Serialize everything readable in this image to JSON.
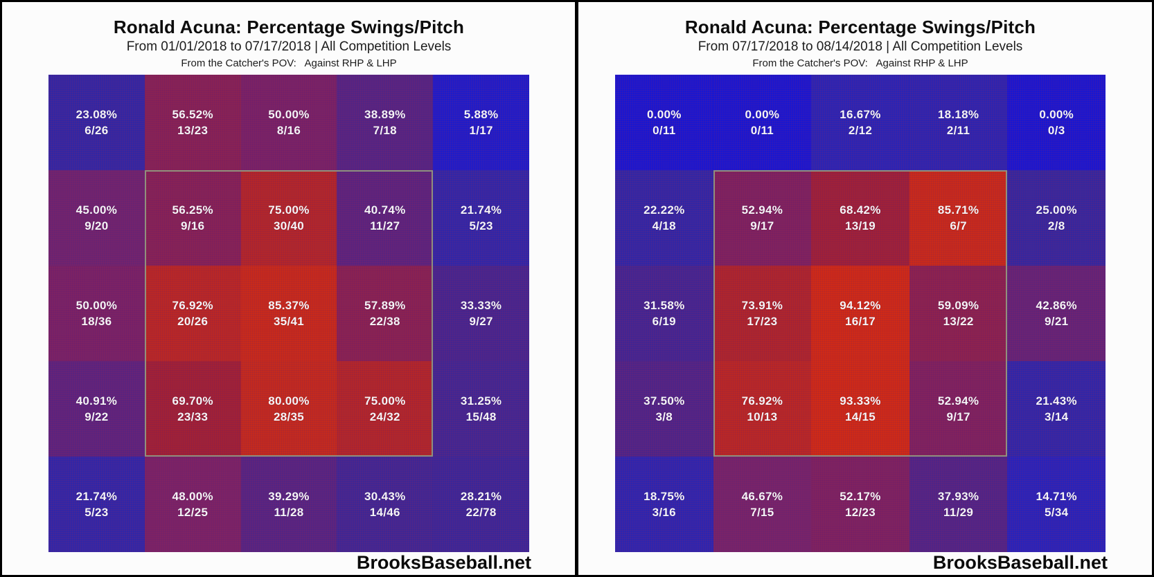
{
  "site_label": "BrooksBaseball.net",
  "panels": [
    {
      "title": "Ronald Acuna: Percentage Swings/Pitch",
      "subtitle": "From 01/01/2018 to 07/17/2018 | All Competition Levels",
      "pov_line": "From the Catcher's POV:   Against RHP & LHP",
      "footer": "BrooksBaseball.net"
    },
    {
      "title": "Ronald Acuna: Percentage Swings/Pitch",
      "subtitle": "From 07/17/2018 to 08/14/2018 | All Competition Levels",
      "pov_line": "From the Catcher's POV:   Against RHP & LHP",
      "footer": "BrooksBaseball.net"
    }
  ],
  "color_scale": {
    "low_color": "#1717d1",
    "high_color": "#d62a12",
    "strike_zone_outline": "#90907d",
    "stops": [
      {
        "t": 0,
        "color": "#1717d1"
      },
      {
        "t": 0.12,
        "color": "#2222c2"
      },
      {
        "t": 0.25,
        "color": "#33279f"
      },
      {
        "t": 0.375,
        "color": "#4b2489"
      },
      {
        "t": 0.5,
        "color": "#7d2263"
      },
      {
        "t": 0.7,
        "color": "#a42133"
      },
      {
        "t": 0.8,
        "color": "#c62a1c"
      },
      {
        "t": 1,
        "color": "#d62a12"
      }
    ]
  },
  "chart_data": [
    {
      "type": "heatmap",
      "title": "Ronald Acuna: Percentage Swings/Pitch",
      "subtitle": "From 01/01/2018 to 07/17/2018 | All Competition Levels",
      "pov": "From the Catcher's POV: Against RHP & LHP",
      "value_unit": "percent swings per pitch (swings/pitches)",
      "rows": 5,
      "cols": 5,
      "strike_zone": "inner 3x3 cells outlined",
      "cells": [
        [
          {
            "value": 23.08,
            "pct": "23.08%",
            "frac": "6/26"
          },
          {
            "value": 56.52,
            "pct": "56.52%",
            "frac": "13/23"
          },
          {
            "value": 50.0,
            "pct": "50.00%",
            "frac": "8/16"
          },
          {
            "value": 38.89,
            "pct": "38.89%",
            "frac": "7/18"
          },
          {
            "value": 5.88,
            "pct": "5.88%",
            "frac": "1/17"
          }
        ],
        [
          {
            "value": 45.0,
            "pct": "45.00%",
            "frac": "9/20"
          },
          {
            "value": 56.25,
            "pct": "56.25%",
            "frac": "9/16"
          },
          {
            "value": 75.0,
            "pct": "75.00%",
            "frac": "30/40"
          },
          {
            "value": 40.74,
            "pct": "40.74%",
            "frac": "11/27"
          },
          {
            "value": 21.74,
            "pct": "21.74%",
            "frac": "5/23"
          }
        ],
        [
          {
            "value": 50.0,
            "pct": "50.00%",
            "frac": "18/36"
          },
          {
            "value": 76.92,
            "pct": "76.92%",
            "frac": "20/26"
          },
          {
            "value": 85.37,
            "pct": "85.37%",
            "frac": "35/41"
          },
          {
            "value": 57.89,
            "pct": "57.89%",
            "frac": "22/38"
          },
          {
            "value": 33.33,
            "pct": "33.33%",
            "frac": "9/27"
          }
        ],
        [
          {
            "value": 40.91,
            "pct": "40.91%",
            "frac": "9/22"
          },
          {
            "value": 69.7,
            "pct": "69.70%",
            "frac": "23/33"
          },
          {
            "value": 80.0,
            "pct": "80.00%",
            "frac": "28/35"
          },
          {
            "value": 75.0,
            "pct": "75.00%",
            "frac": "24/32"
          },
          {
            "value": 31.25,
            "pct": "31.25%",
            "frac": "15/48"
          }
        ],
        [
          {
            "value": 21.74,
            "pct": "21.74%",
            "frac": "5/23"
          },
          {
            "value": 48.0,
            "pct": "48.00%",
            "frac": "12/25"
          },
          {
            "value": 39.29,
            "pct": "39.29%",
            "frac": "11/28"
          },
          {
            "value": 30.43,
            "pct": "30.43%",
            "frac": "14/46"
          },
          {
            "value": 28.21,
            "pct": "28.21%",
            "frac": "22/78"
          }
        ]
      ]
    },
    {
      "type": "heatmap",
      "title": "Ronald Acuna: Percentage Swings/Pitch",
      "subtitle": "From 07/17/2018 to 08/14/2018 | All Competition Levels",
      "pov": "From the Catcher's POV: Against RHP & LHP",
      "value_unit": "percent swings per pitch (swings/pitches)",
      "rows": 5,
      "cols": 5,
      "strike_zone": "inner 3x3 cells outlined",
      "cells": [
        [
          {
            "value": 0.0,
            "pct": "0.00%",
            "frac": "0/11"
          },
          {
            "value": 0.0,
            "pct": "0.00%",
            "frac": "0/11"
          },
          {
            "value": 16.67,
            "pct": "16.67%",
            "frac": "2/12"
          },
          {
            "value": 18.18,
            "pct": "18.18%",
            "frac": "2/11"
          },
          {
            "value": 0.0,
            "pct": "0.00%",
            "frac": "0/3"
          }
        ],
        [
          {
            "value": 22.22,
            "pct": "22.22%",
            "frac": "4/18"
          },
          {
            "value": 52.94,
            "pct": "52.94%",
            "frac": "9/17"
          },
          {
            "value": 68.42,
            "pct": "68.42%",
            "frac": "13/19"
          },
          {
            "value": 85.71,
            "pct": "85.71%",
            "frac": "6/7"
          },
          {
            "value": 25.0,
            "pct": "25.00%",
            "frac": "2/8"
          }
        ],
        [
          {
            "value": 31.58,
            "pct": "31.58%",
            "frac": "6/19"
          },
          {
            "value": 73.91,
            "pct": "73.91%",
            "frac": "17/23"
          },
          {
            "value": 94.12,
            "pct": "94.12%",
            "frac": "16/17"
          },
          {
            "value": 59.09,
            "pct": "59.09%",
            "frac": "13/22"
          },
          {
            "value": 42.86,
            "pct": "42.86%",
            "frac": "9/21"
          }
        ],
        [
          {
            "value": 37.5,
            "pct": "37.50%",
            "frac": "3/8"
          },
          {
            "value": 76.92,
            "pct": "76.92%",
            "frac": "10/13"
          },
          {
            "value": 93.33,
            "pct": "93.33%",
            "frac": "14/15"
          },
          {
            "value": 52.94,
            "pct": "52.94%",
            "frac": "9/17"
          },
          {
            "value": 21.43,
            "pct": "21.43%",
            "frac": "3/14"
          }
        ],
        [
          {
            "value": 18.75,
            "pct": "18.75%",
            "frac": "3/16"
          },
          {
            "value": 46.67,
            "pct": "46.67%",
            "frac": "7/15"
          },
          {
            "value": 52.17,
            "pct": "52.17%",
            "frac": "12/23"
          },
          {
            "value": 37.93,
            "pct": "37.93%",
            "frac": "11/29"
          },
          {
            "value": 14.71,
            "pct": "14.71%",
            "frac": "5/34"
          }
        ]
      ]
    }
  ]
}
